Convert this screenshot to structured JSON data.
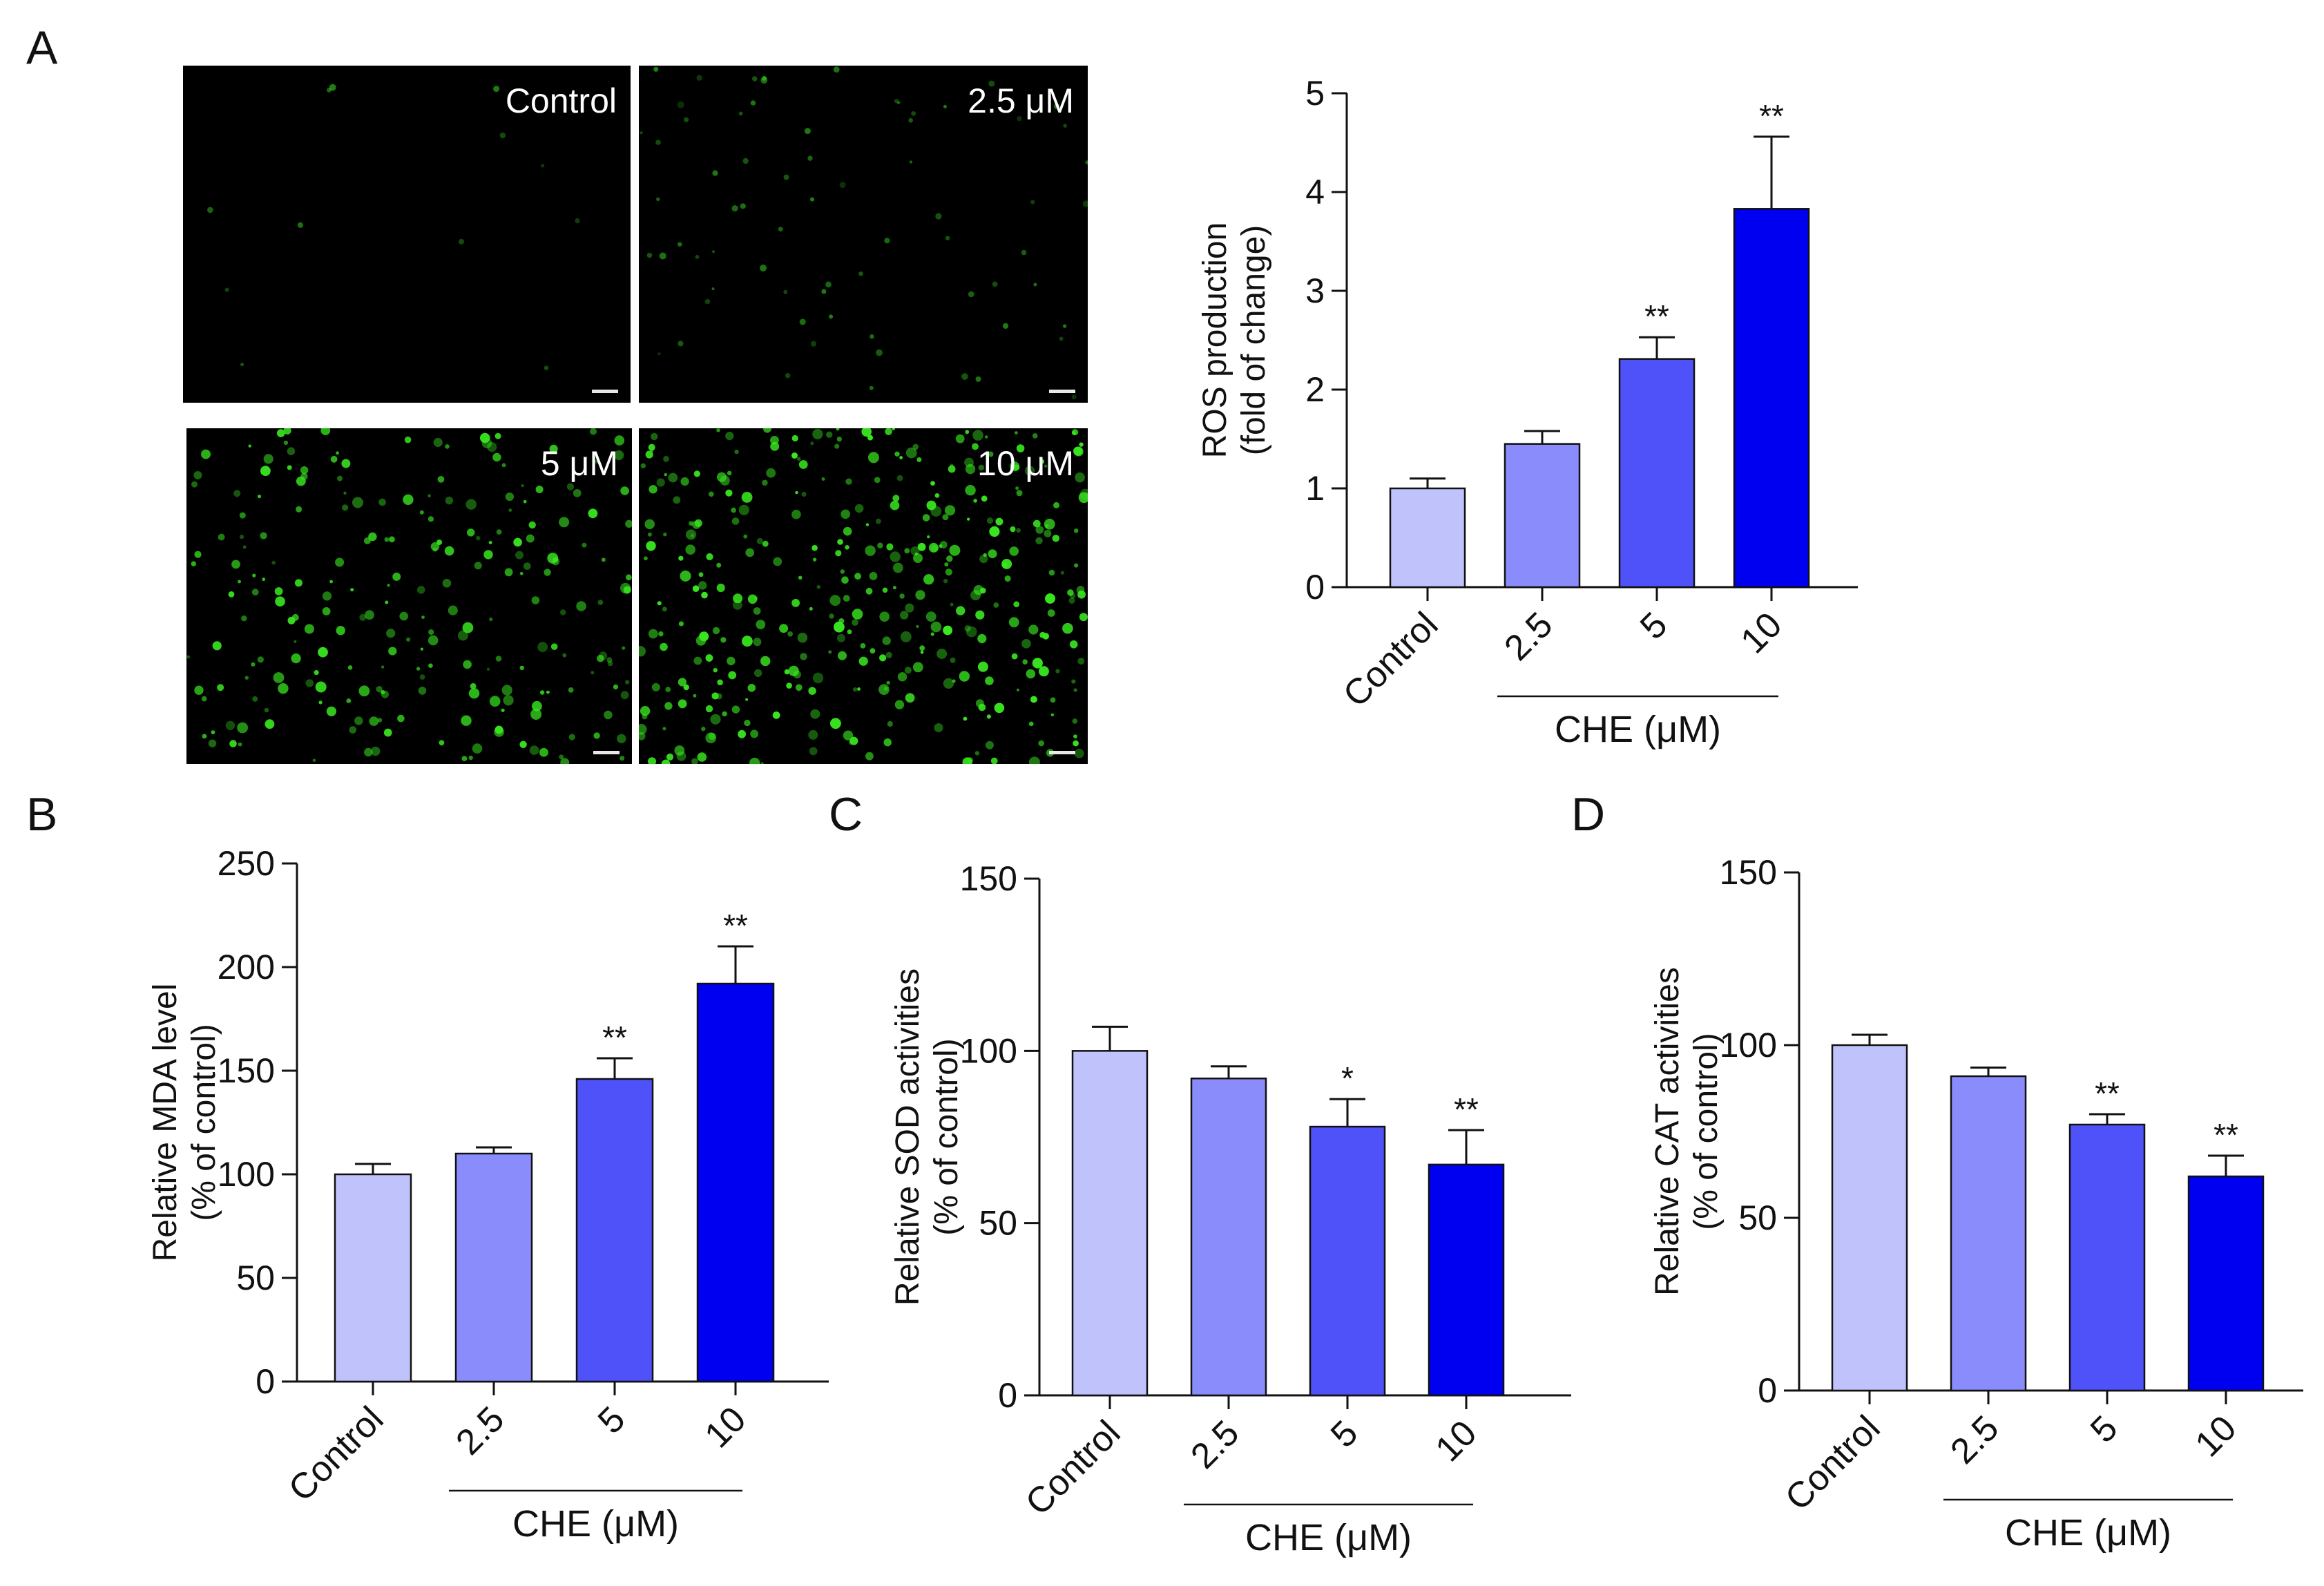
{
  "panels": {
    "A": {
      "letter": "A",
      "images": [
        {
          "label": "Control",
          "density": 12,
          "brightness": 0.55
        },
        {
          "label": "2.5 μM",
          "density": 70,
          "brightness": 0.55
        },
        {
          "label": "5 μM",
          "density": 230,
          "brightness": 0.95
        },
        {
          "label": "10 μM",
          "density": 380,
          "brightness": 1.0
        }
      ]
    },
    "B": {
      "letter": "B"
    },
    "C": {
      "letter": "C"
    },
    "D": {
      "letter": "D"
    }
  },
  "colors": {
    "bars": [
      "#c0c2fc",
      "#8a8cfb",
      "#5052f9",
      "#0000f0"
    ],
    "axis": "#111111",
    "glow": "#39e820"
  },
  "chart_data": [
    {
      "id": "A",
      "type": "bar",
      "title": "",
      "ylabel": [
        "ROS production",
        "(fold of change)"
      ],
      "xlabel": "CHE (μM)",
      "categories": [
        "Control",
        "2.5",
        "5",
        "10"
      ],
      "values": [
        1.0,
        1.45,
        2.31,
        3.83
      ],
      "errors": [
        0.1,
        0.13,
        0.22,
        0.73
      ],
      "significance": [
        "",
        "",
        "**",
        "**"
      ],
      "ylim": [
        0,
        5
      ],
      "yticks": [
        0,
        1,
        2,
        3,
        4,
        5
      ]
    },
    {
      "id": "B",
      "type": "bar",
      "title": "",
      "ylabel": [
        "Relative MDA level",
        "(% of control)"
      ],
      "xlabel": "CHE (μM)",
      "categories": [
        "Control",
        "2.5",
        "5",
        "10"
      ],
      "values": [
        100,
        110,
        146,
        192
      ],
      "errors": [
        5,
        3,
        10,
        18
      ],
      "significance": [
        "",
        "",
        "**",
        "**"
      ],
      "ylim": [
        0,
        250
      ],
      "yticks": [
        0,
        50,
        100,
        150,
        200,
        250
      ]
    },
    {
      "id": "C",
      "type": "bar",
      "title": "",
      "ylabel": [
        "Relative SOD activities",
        "(% of control)"
      ],
      "xlabel": "CHE (μM)",
      "categories": [
        "Control",
        "2.5",
        "5",
        "10"
      ],
      "values": [
        100,
        92,
        78,
        67
      ],
      "errors": [
        7,
        3.5,
        8,
        10
      ],
      "significance": [
        "",
        "",
        "*",
        "**"
      ],
      "ylim": [
        0,
        150
      ],
      "yticks": [
        0,
        50,
        100,
        150
      ]
    },
    {
      "id": "D",
      "type": "bar",
      "title": "",
      "ylabel": [
        "Relative CAT activities",
        "(% of control)"
      ],
      "xlabel": "CHE (μM)",
      "categories": [
        "Control",
        "2.5",
        "5",
        "10"
      ],
      "values": [
        100,
        91,
        77,
        62
      ],
      "errors": [
        3,
        2.5,
        3,
        6
      ],
      "significance": [
        "",
        "",
        "**",
        "**"
      ],
      "ylim": [
        0,
        150
      ],
      "yticks": [
        0,
        50,
        100,
        150
      ]
    }
  ]
}
